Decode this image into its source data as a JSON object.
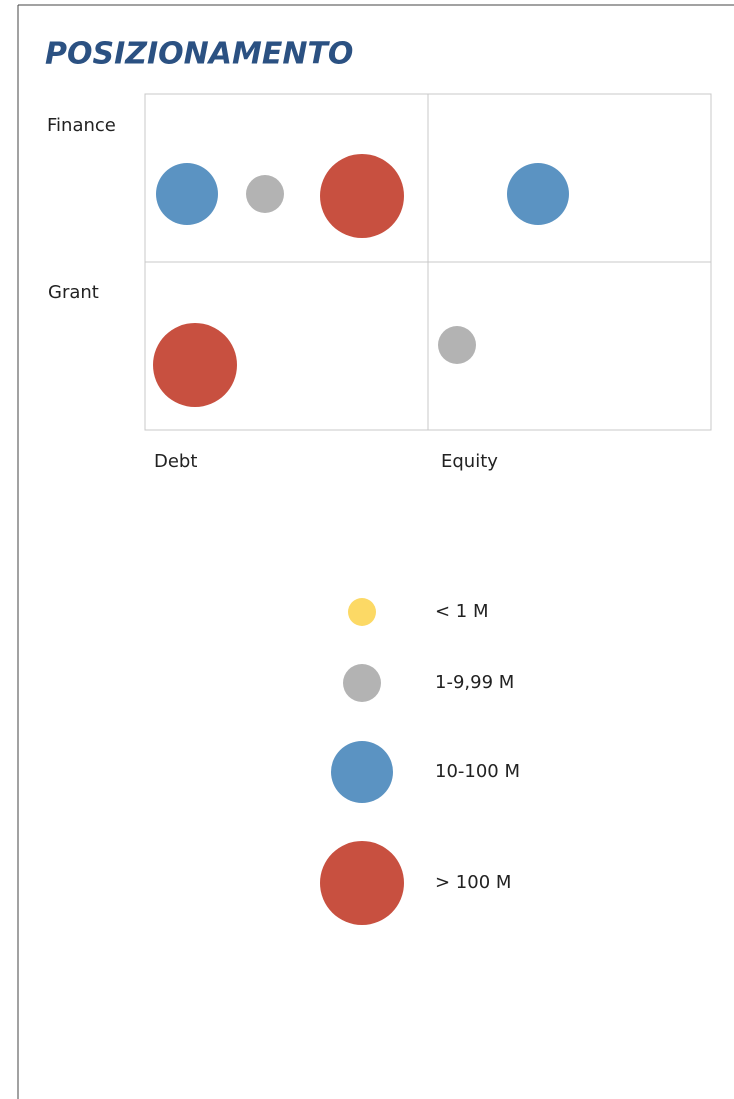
{
  "title": "POSIZIONAMENTO",
  "grid": {
    "rows": [
      "Finance",
      "Grant"
    ],
    "columns": [
      "Debt",
      "Equity"
    ],
    "cells": [
      [
        [
          "10-100 M",
          "1-9,99 M",
          "> 100 M"
        ],
        [
          "10-100 M"
        ]
      ],
      [
        [
          "> 100 M"
        ],
        [
          "1-9,99 M"
        ]
      ]
    ]
  },
  "legend": [
    {
      "label": "< 1 M",
      "color": "#fcd965"
    },
    {
      "label": "1-9,99 M",
      "color": "#b3b3b3"
    },
    {
      "label": "10-100 M",
      "color": "#5b93c2"
    },
    {
      "label": "> 100 M",
      "color": "#c85040"
    }
  ]
}
